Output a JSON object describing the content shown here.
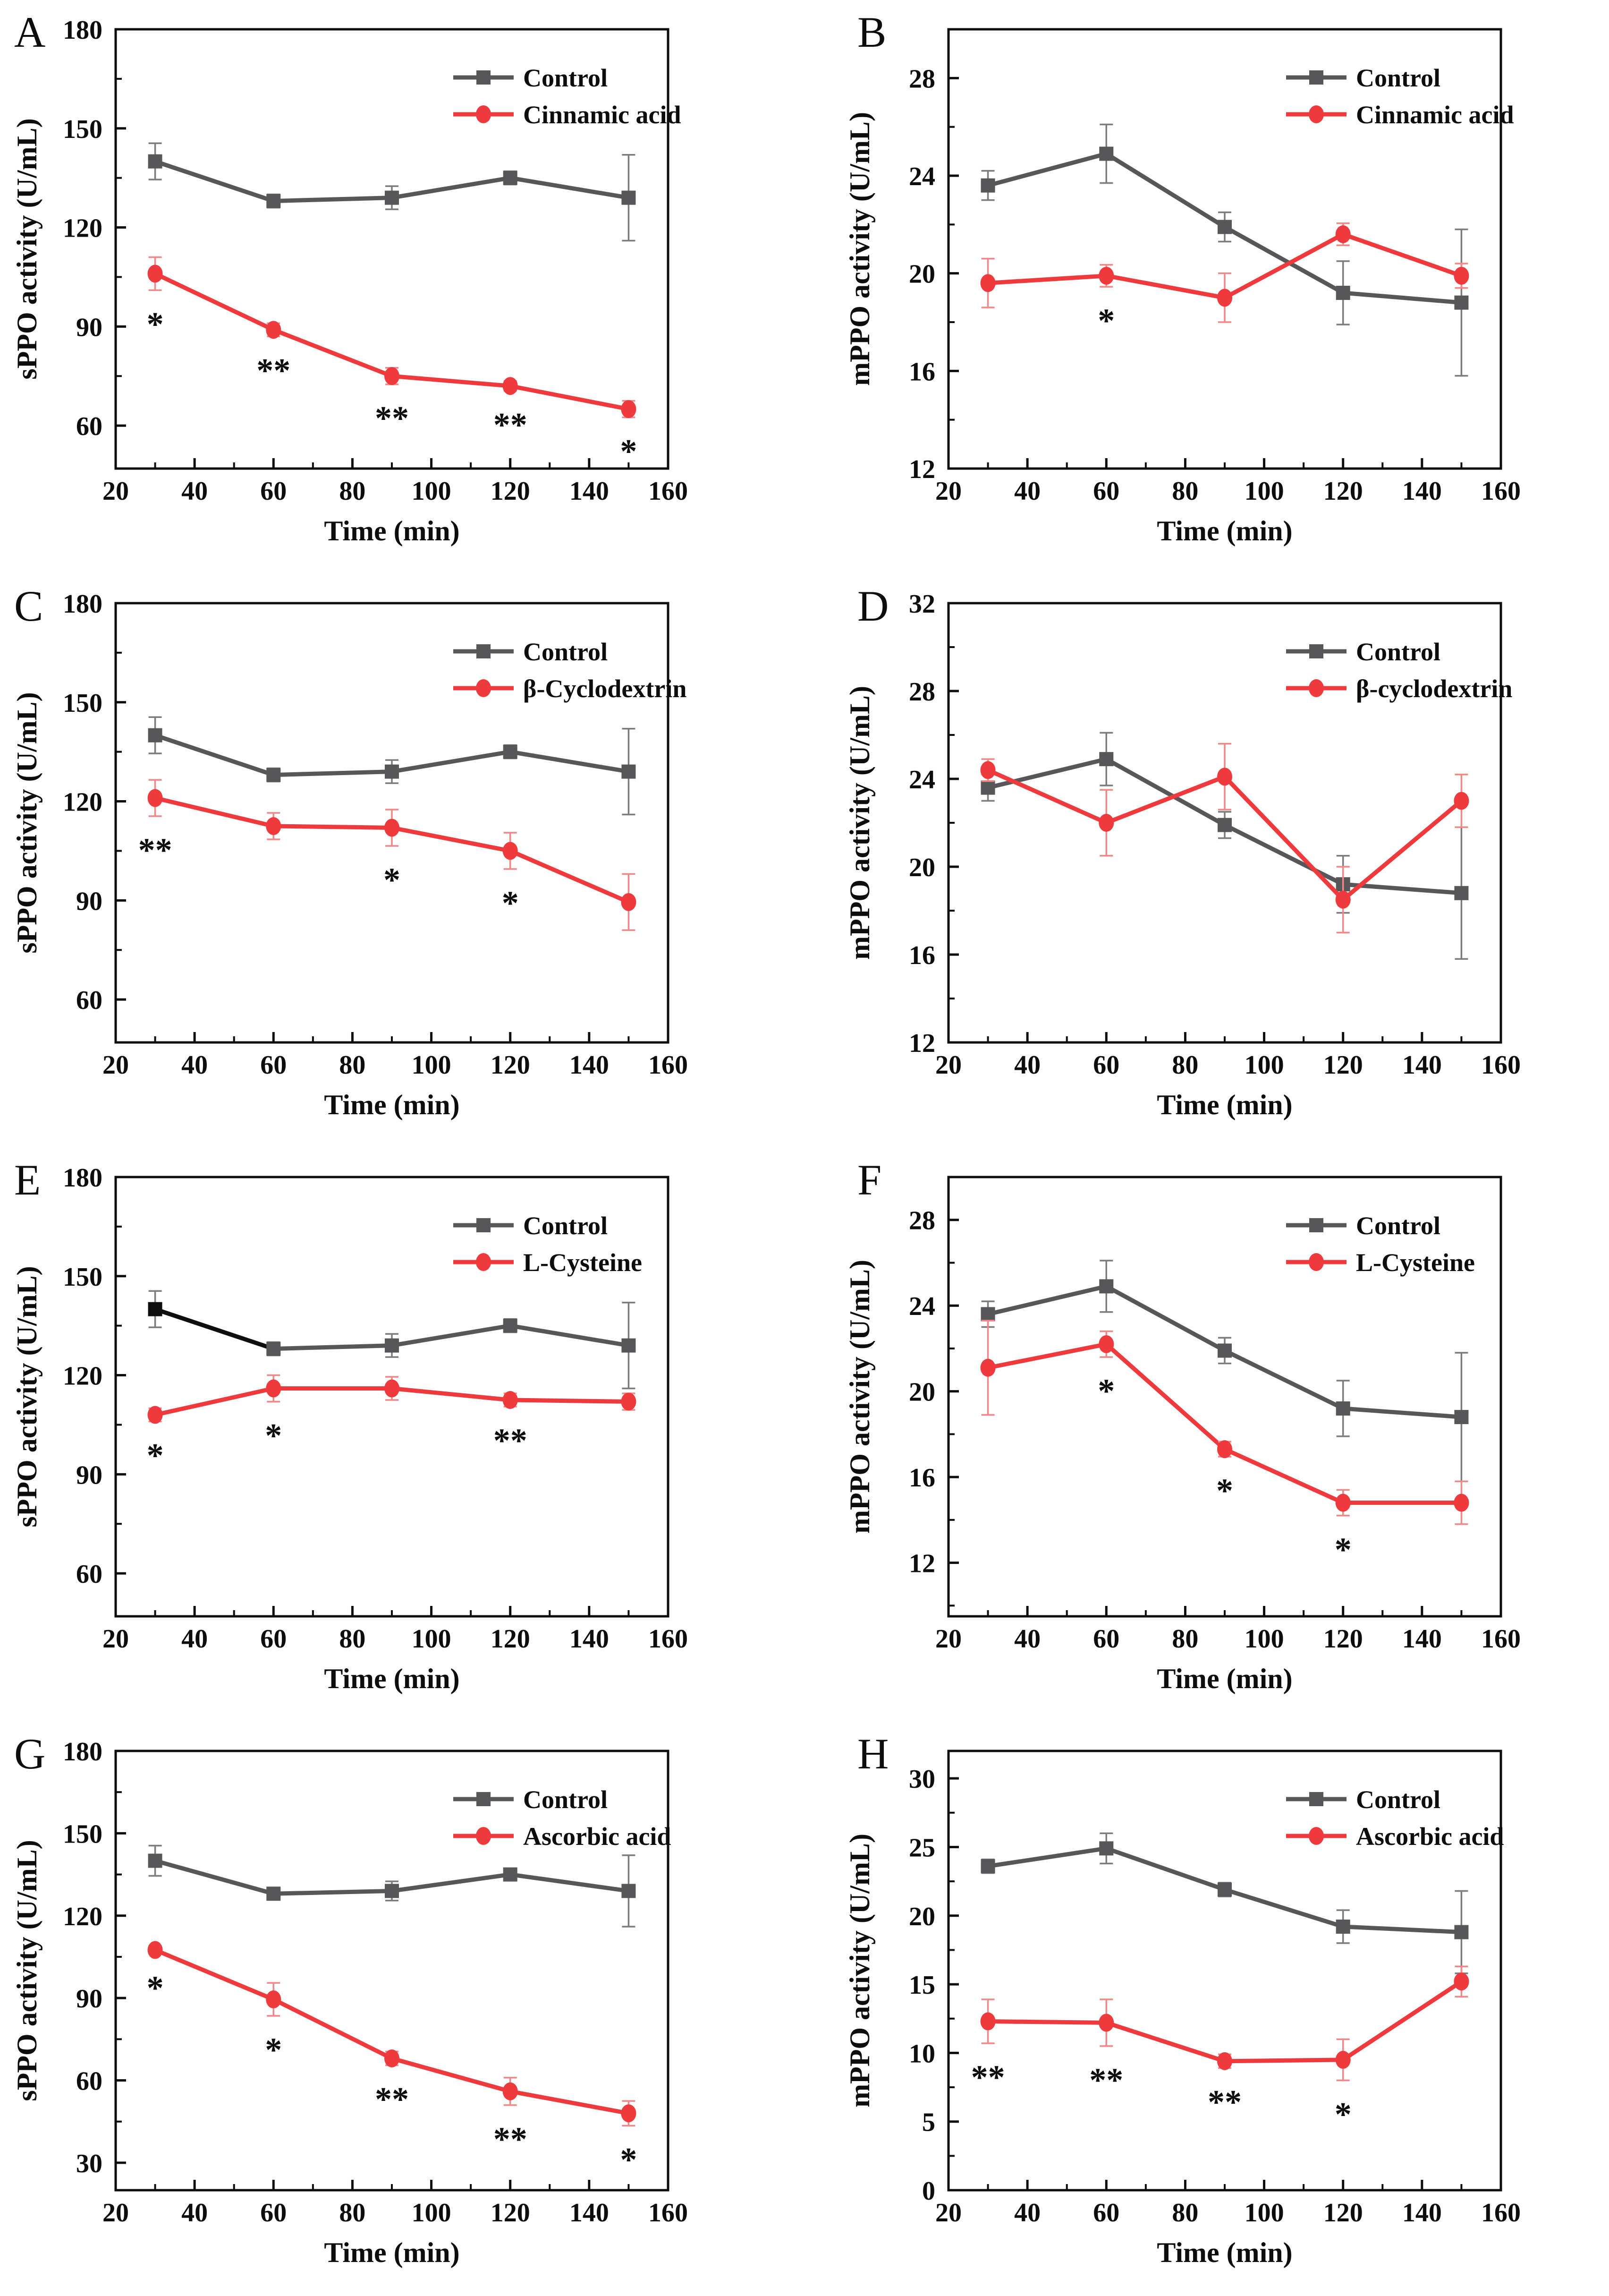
{
  "figure_title": "",
  "chart_data": [
    {
      "type": "line",
      "panel": "A",
      "xlabel": "Time (min)",
      "ylabel": "sPPO activity (U/mL)",
      "x": [
        30,
        60,
        90,
        120,
        150
      ],
      "xlim": [
        20,
        160
      ],
      "xticks": [
        20,
        40,
        60,
        80,
        100,
        120,
        140,
        160
      ],
      "ylim": [
        47,
        180
      ],
      "yticks": [
        60,
        90,
        120,
        150,
        180
      ],
      "grid": false,
      "legend_position": "top-right",
      "series": [
        {
          "name": "Control",
          "marker": "square",
          "color": "#57575a",
          "error_color": "#7c7c80",
          "values": [
            140,
            128,
            129,
            135,
            129
          ],
          "errors": [
            5.5,
            2,
            3.5,
            2,
            13
          ],
          "annotations": [
            "",
            "",
            "",
            "",
            ""
          ]
        },
        {
          "name": "Cinnamic acid",
          "marker": "circle",
          "color": "#ee3a3c",
          "error_color": "#f38787",
          "values": [
            106,
            89,
            75,
            72,
            65
          ],
          "errors": [
            5,
            2,
            2.5,
            1.5,
            2.5
          ],
          "annotations": [
            "*",
            "**",
            "**",
            "**",
            "*"
          ]
        }
      ]
    },
    {
      "type": "line",
      "panel": "B",
      "xlabel": "Time (min)",
      "ylabel": "mPPO activity (U/mL)",
      "x": [
        30,
        60,
        90,
        120,
        150
      ],
      "xlim": [
        20,
        160
      ],
      "xticks": [
        20,
        40,
        60,
        80,
        100,
        120,
        140,
        160
      ],
      "ylim": [
        12,
        30
      ],
      "yticks": [
        12,
        16,
        20,
        24,
        28
      ],
      "grid": false,
      "legend_position": "top-right",
      "series": [
        {
          "name": "Control",
          "marker": "square",
          "color": "#57575a",
          "error_color": "#7c7c80",
          "values": [
            23.6,
            24.9,
            21.9,
            19.2,
            18.8
          ],
          "errors": [
            0.6,
            1.2,
            0.6,
            1.3,
            3.0
          ],
          "annotations": [
            "",
            "",
            "",
            "",
            ""
          ]
        },
        {
          "name": "Cinnamic acid",
          "marker": "circle",
          "color": "#ee3a3c",
          "error_color": "#f38787",
          "values": [
            19.6,
            19.9,
            19.0,
            21.6,
            19.9
          ],
          "errors": [
            1.0,
            0.45,
            1.0,
            0.45,
            0.5
          ],
          "annotations": [
            "",
            "*",
            "",
            "",
            ""
          ]
        }
      ]
    },
    {
      "type": "line",
      "panel": "C",
      "xlabel": "Time (min)",
      "ylabel": "sPPO activity (U/mL)",
      "x": [
        30,
        60,
        90,
        120,
        150
      ],
      "xlim": [
        20,
        160
      ],
      "xticks": [
        20,
        40,
        60,
        80,
        100,
        120,
        140,
        160
      ],
      "ylim": [
        47,
        180
      ],
      "yticks": [
        60,
        90,
        120,
        150,
        180
      ],
      "grid": false,
      "legend_position": "top-right",
      "series": [
        {
          "name": "Control",
          "marker": "square",
          "color": "#57575a",
          "error_color": "#7c7c80",
          "values": [
            140,
            128,
            129,
            135,
            129
          ],
          "errors": [
            5.5,
            2,
            3.5,
            2,
            13
          ],
          "annotations": [
            "",
            "",
            "",
            "",
            ""
          ]
        },
        {
          "name": "β-Cyclodextrin",
          "marker": "circle",
          "color": "#ee3a3c",
          "error_color": "#f38787",
          "values": [
            121,
            112.5,
            112,
            105,
            89.5
          ],
          "errors": [
            5.5,
            4,
            5.5,
            5.5,
            8.5
          ],
          "annotations": [
            "**",
            "",
            "*",
            "*",
            ""
          ]
        }
      ]
    },
    {
      "type": "line",
      "panel": "D",
      "xlabel": "Time (min)",
      "ylabel": "mPPO activity (U/mL)",
      "x": [
        30,
        60,
        90,
        120,
        150
      ],
      "xlim": [
        20,
        160
      ],
      "xticks": [
        20,
        40,
        60,
        80,
        100,
        120,
        140,
        160
      ],
      "ylim": [
        12,
        32
      ],
      "yticks": [
        12,
        16,
        20,
        24,
        28,
        32
      ],
      "grid": false,
      "legend_position": "top-right",
      "series": [
        {
          "name": "Control",
          "marker": "square",
          "color": "#57575a",
          "error_color": "#7c7c80",
          "values": [
            23.6,
            24.9,
            21.9,
            19.2,
            18.8
          ],
          "errors": [
            0.6,
            1.2,
            0.6,
            1.3,
            3.0
          ],
          "annotations": [
            "",
            "",
            "",
            "",
            ""
          ]
        },
        {
          "name": "β-cyclodextrin",
          "marker": "circle",
          "color": "#ee3a3c",
          "error_color": "#f38787",
          "values": [
            24.4,
            22.0,
            24.1,
            18.5,
            23.0
          ],
          "errors": [
            0.5,
            1.5,
            1.5,
            1.5,
            1.2
          ],
          "annotations": [
            "",
            "",
            "",
            "",
            ""
          ]
        }
      ]
    },
    {
      "type": "line",
      "panel": "E",
      "xlabel": "Time (min)",
      "ylabel": "sPPO activity (U/mL)",
      "x": [
        30,
        60,
        90,
        120,
        150
      ],
      "xlim": [
        20,
        160
      ],
      "xticks": [
        20,
        40,
        60,
        80,
        100,
        120,
        140,
        160
      ],
      "ylim": [
        47,
        180
      ],
      "yticks": [
        60,
        90,
        120,
        150,
        180
      ],
      "grid": false,
      "legend_position": "top-right",
      "series": [
        {
          "name": "Control",
          "marker": "square",
          "color": "#57575a",
          "error_color": "#7c7c80",
          "values": [
            140,
            128,
            129,
            135,
            129
          ],
          "errors": [
            5.5,
            2,
            3.5,
            2,
            13
          ],
          "segment_colors": [
            "#0e0e0e",
            "",
            "",
            ""
          ],
          "point_colors": [
            "#0e0e0e",
            "",
            "",
            "",
            ""
          ],
          "annotations": [
            "",
            "",
            "",
            "",
            ""
          ]
        },
        {
          "name": "L-Cysteine",
          "marker": "circle",
          "color": "#ee3a3c",
          "error_color": "#f38787",
          "values": [
            108,
            116,
            116,
            112.5,
            112
          ],
          "errors": [
            2,
            4,
            3.5,
            2,
            2.5
          ],
          "annotations": [
            "*",
            "*",
            "",
            "**",
            ""
          ]
        }
      ]
    },
    {
      "type": "line",
      "panel": "F",
      "xlabel": "Time (min)",
      "ylabel": "mPPO activity (U/mL)",
      "x": [
        30,
        60,
        90,
        120,
        150
      ],
      "xlim": [
        20,
        160
      ],
      "xticks": [
        20,
        40,
        60,
        80,
        100,
        120,
        140,
        160
      ],
      "ylim": [
        9.5,
        30
      ],
      "yticks": [
        12,
        16,
        20,
        24,
        28
      ],
      "grid": false,
      "legend_position": "top-right",
      "series": [
        {
          "name": "Control",
          "marker": "square",
          "color": "#57575a",
          "error_color": "#7c7c80",
          "values": [
            23.6,
            24.9,
            21.9,
            19.2,
            18.8
          ],
          "errors": [
            0.6,
            1.2,
            0.6,
            1.3,
            3.0
          ],
          "annotations": [
            "",
            "",
            "",
            "",
            ""
          ]
        },
        {
          "name": "L-Cysteine",
          "marker": "circle",
          "color": "#ee3a3c",
          "error_color": "#f38787",
          "values": [
            21.1,
            22.2,
            17.3,
            14.8,
            14.8
          ],
          "errors": [
            2.2,
            0.6,
            0.35,
            0.6,
            1.0
          ],
          "annotations": [
            "",
            "*",
            "*",
            "*",
            ""
          ]
        }
      ]
    },
    {
      "type": "line",
      "panel": "G",
      "xlabel": "Time (min)",
      "ylabel": "sPPO activity (U/mL)",
      "x": [
        30,
        60,
        90,
        120,
        150
      ],
      "xlim": [
        20,
        160
      ],
      "xticks": [
        20,
        40,
        60,
        80,
        100,
        120,
        140,
        160
      ],
      "ylim": [
        20,
        180
      ],
      "yticks": [
        30,
        60,
        90,
        120,
        150,
        180
      ],
      "grid": false,
      "legend_position": "top-right",
      "series": [
        {
          "name": "Control",
          "marker": "square",
          "color": "#57575a",
          "error_color": "#7c7c80",
          "values": [
            140,
            128,
            129,
            135,
            129
          ],
          "errors": [
            5.5,
            2,
            3.5,
            2,
            13
          ],
          "annotations": [
            "",
            "",
            "",
            "",
            ""
          ]
        },
        {
          "name": "Ascorbic acid",
          "marker": "circle",
          "color": "#ee3a3c",
          "error_color": "#f38787",
          "values": [
            107.5,
            89.5,
            68,
            56,
            48
          ],
          "errors": [
            1.5,
            6,
            2.5,
            5,
            4.5
          ],
          "annotations": [
            "*",
            "*",
            "**",
            "**",
            "*"
          ]
        }
      ]
    },
    {
      "type": "line",
      "panel": "H",
      "xlabel": "Time (min)",
      "ylabel": "mPPO activity (U/mL)",
      "x": [
        30,
        60,
        90,
        120,
        150
      ],
      "xlim": [
        20,
        160
      ],
      "xticks": [
        20,
        40,
        60,
        80,
        100,
        120,
        140,
        160
      ],
      "ylim": [
        0,
        32
      ],
      "yticks": [
        0,
        5,
        10,
        15,
        20,
        25,
        30
      ],
      "grid": false,
      "legend_position": "top-right",
      "series": [
        {
          "name": "Control",
          "marker": "square",
          "color": "#57575a",
          "error_color": "#7c7c80",
          "values": [
            23.6,
            24.9,
            21.9,
            19.2,
            18.8
          ],
          "errors": [
            0.5,
            1.1,
            0.5,
            1.2,
            3.0
          ],
          "annotations": [
            "",
            "",
            "",
            "",
            ""
          ]
        },
        {
          "name": "Ascorbic acid",
          "marker": "circle",
          "color": "#ee3a3c",
          "error_color": "#f38787",
          "values": [
            12.3,
            12.2,
            9.4,
            9.5,
            15.2
          ],
          "errors": [
            1.6,
            1.7,
            0.5,
            1.5,
            1.1
          ],
          "annotations": [
            "**",
            "**",
            "**",
            "*",
            ""
          ]
        }
      ]
    }
  ]
}
